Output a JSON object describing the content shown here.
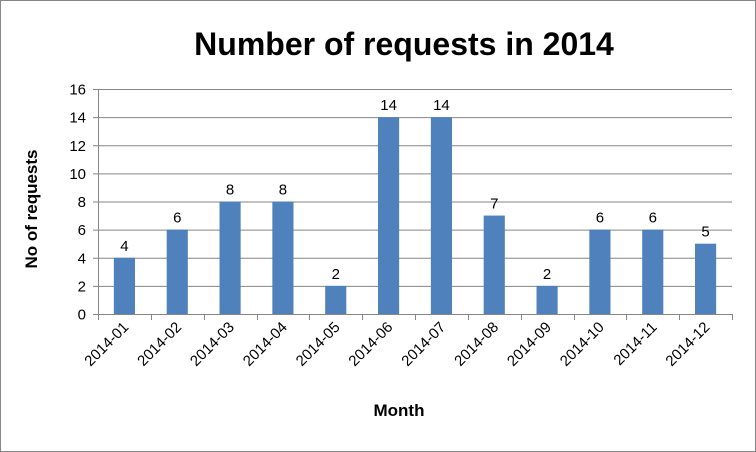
{
  "chart_data": {
    "type": "bar",
    "title": "Number of requests in 2014",
    "xlabel": "Month",
    "ylabel": "No of requests",
    "categories": [
      "2014-01",
      "2014-02",
      "2014-03",
      "2014-04",
      "2014-05",
      "2014-06",
      "2014-07",
      "2014-08",
      "2014-09",
      "2014-10",
      "2014-11",
      "2014-12"
    ],
    "values": [
      4,
      6,
      8,
      8,
      2,
      14,
      14,
      7,
      2,
      6,
      6,
      5
    ],
    "ylim": [
      0,
      16
    ],
    "yticks": [
      0,
      2,
      4,
      6,
      8,
      10,
      12,
      14,
      16
    ],
    "grid": true,
    "legend": "none",
    "bar_color": "#4f81bd",
    "data_labels": true
  }
}
